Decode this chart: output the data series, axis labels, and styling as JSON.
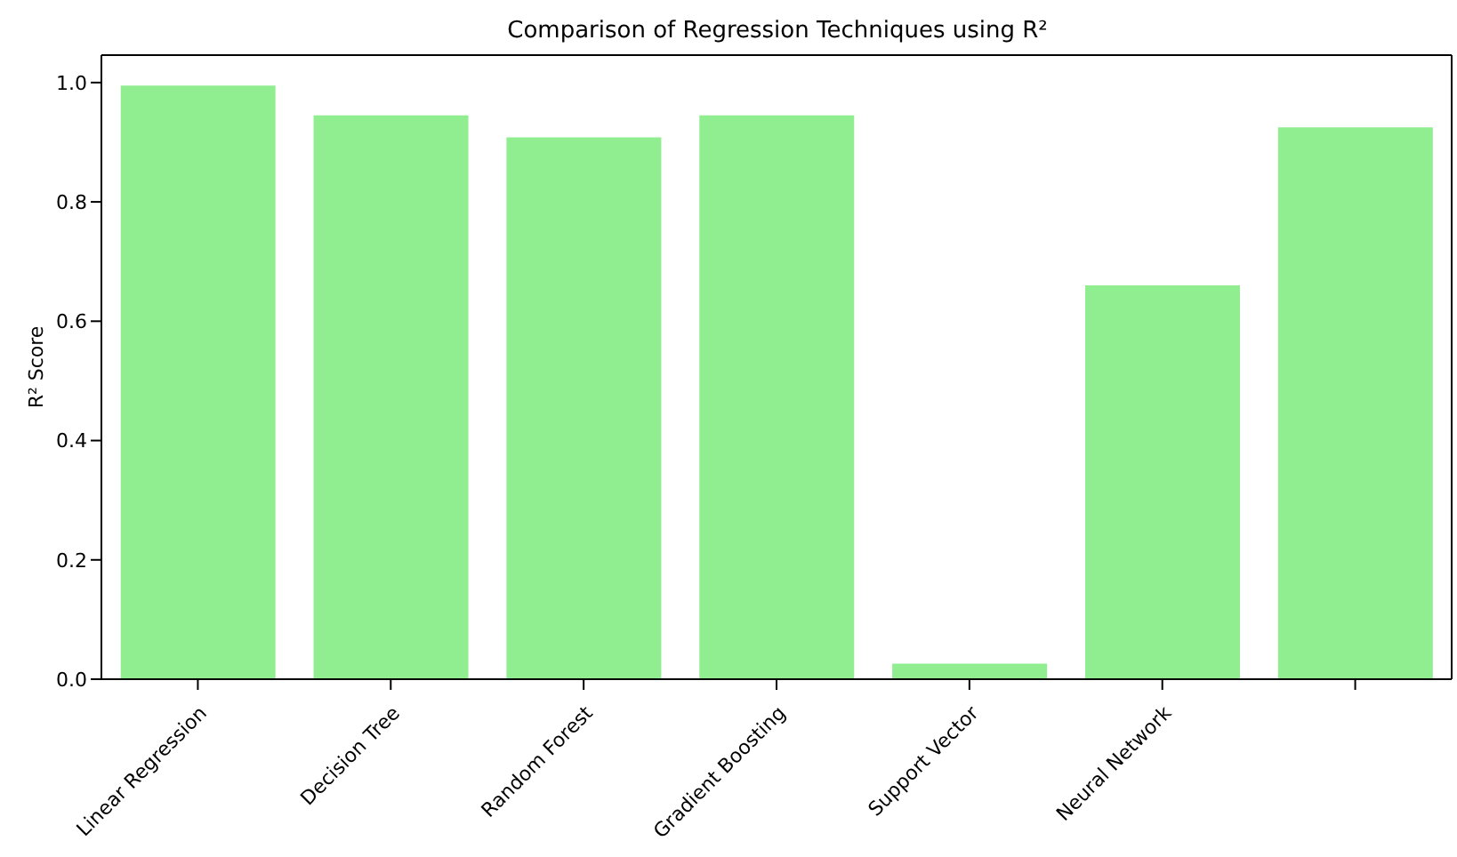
{
  "chart_data": {
    "type": "bar",
    "title": "Comparison of Regression Techniques using R²",
    "ylabel": "R² Score",
    "categories": [
      "Linear Regression",
      "Decision Tree",
      "Random Forest",
      "Gradient Boosting",
      "Support Vector",
      "Neural Network",
      null
    ],
    "values": [
      0.995,
      0.945,
      0.908,
      0.945,
      0.026,
      0.66,
      0.925
    ],
    "color": "#90ee90",
    "ylim": [
      0,
      1.046
    ],
    "yticks": [
      {
        "value": 0,
        "label": "0.0"
      },
      0.2,
      0.4,
      0.6,
      0.8,
      {
        "value": 1,
        "label": "1.0"
      }
    ],
    "grid": false
  }
}
